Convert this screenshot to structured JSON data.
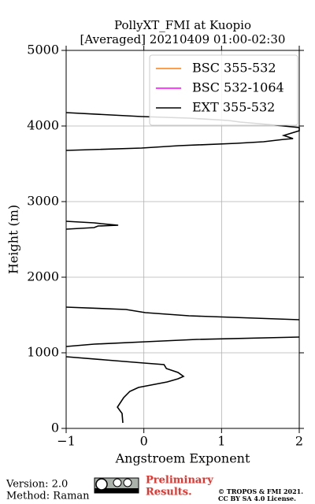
{
  "chart_data": {
    "type": "line",
    "title": "PollyXT_FMI at Kuopio",
    "subtitle": "[Averaged] 20210409 01:00-02:30",
    "x_label": "Angstroem Exponent",
    "y_label": "Height (m)",
    "xlim": [
      -1,
      2
    ],
    "xticks": [
      {
        "value": -1,
        "label": "−1"
      },
      0,
      1,
      2
    ],
    "ylim": [
      0,
      5000
    ],
    "yticks": [
      0,
      1000,
      2000,
      3000,
      4000,
      5000
    ],
    "grid": true,
    "legend": "upper right",
    "series": [
      {
        "name": "BSC 355-532",
        "color": "#ff7f0e",
        "x": [],
        "y": []
      },
      {
        "name": "BSC 532-1064",
        "color": "#ff00ff",
        "x": [],
        "y": []
      },
      {
        "name": "EXT 355-532",
        "color": "#000000",
        "x": [
          -0.27,
          -0.28,
          -0.34,
          -0.26,
          -0.18,
          -0.07,
          0.3,
          0.44,
          0.51,
          0.44,
          0.29,
          0.26,
          0.0,
          -0.5,
          -1.0,
          null,
          -1.0,
          -0.64,
          0.02,
          0.68,
          2.0,
          null,
          2.0,
          0.58,
          0.02,
          -0.23,
          -1.0,
          null,
          -1.0,
          -0.64,
          -0.59,
          -0.33,
          -0.55,
          -0.64,
          -1.0,
          null,
          -1.0,
          -0.03,
          0.45,
          1.19,
          1.54,
          1.8,
          1.92,
          1.8,
          2.0,
          2.0,
          1.6,
          1.24,
          1.09,
          0.58,
          -0.03,
          -1.0
        ],
        "y": [
          73,
          198,
          281,
          406,
          490,
          542,
          615,
          656,
          688,
          740,
          792,
          844,
          865,
          906,
          948,
          null,
          1083,
          1115,
          1146,
          1177,
          1208,
          null,
          1437,
          1490,
          1531,
          1573,
          1604,
          null,
          2635,
          2656,
          2677,
          2688,
          2708,
          2719,
          2740,
          null,
          3677,
          3708,
          3740,
          3771,
          3792,
          3823,
          3833,
          3875,
          3938,
          3979,
          4021,
          4052,
          4073,
          4104,
          4125,
          4177
        ]
      }
    ],
    "footer": {
      "version": "Version: 2.0",
      "method": "Method: Raman",
      "preliminary": [
        "Preliminary",
        "Results."
      ],
      "license": [
        "© TROPOS & FMI 2021.",
        "CC BY SA 4.0 License."
      ]
    }
  }
}
